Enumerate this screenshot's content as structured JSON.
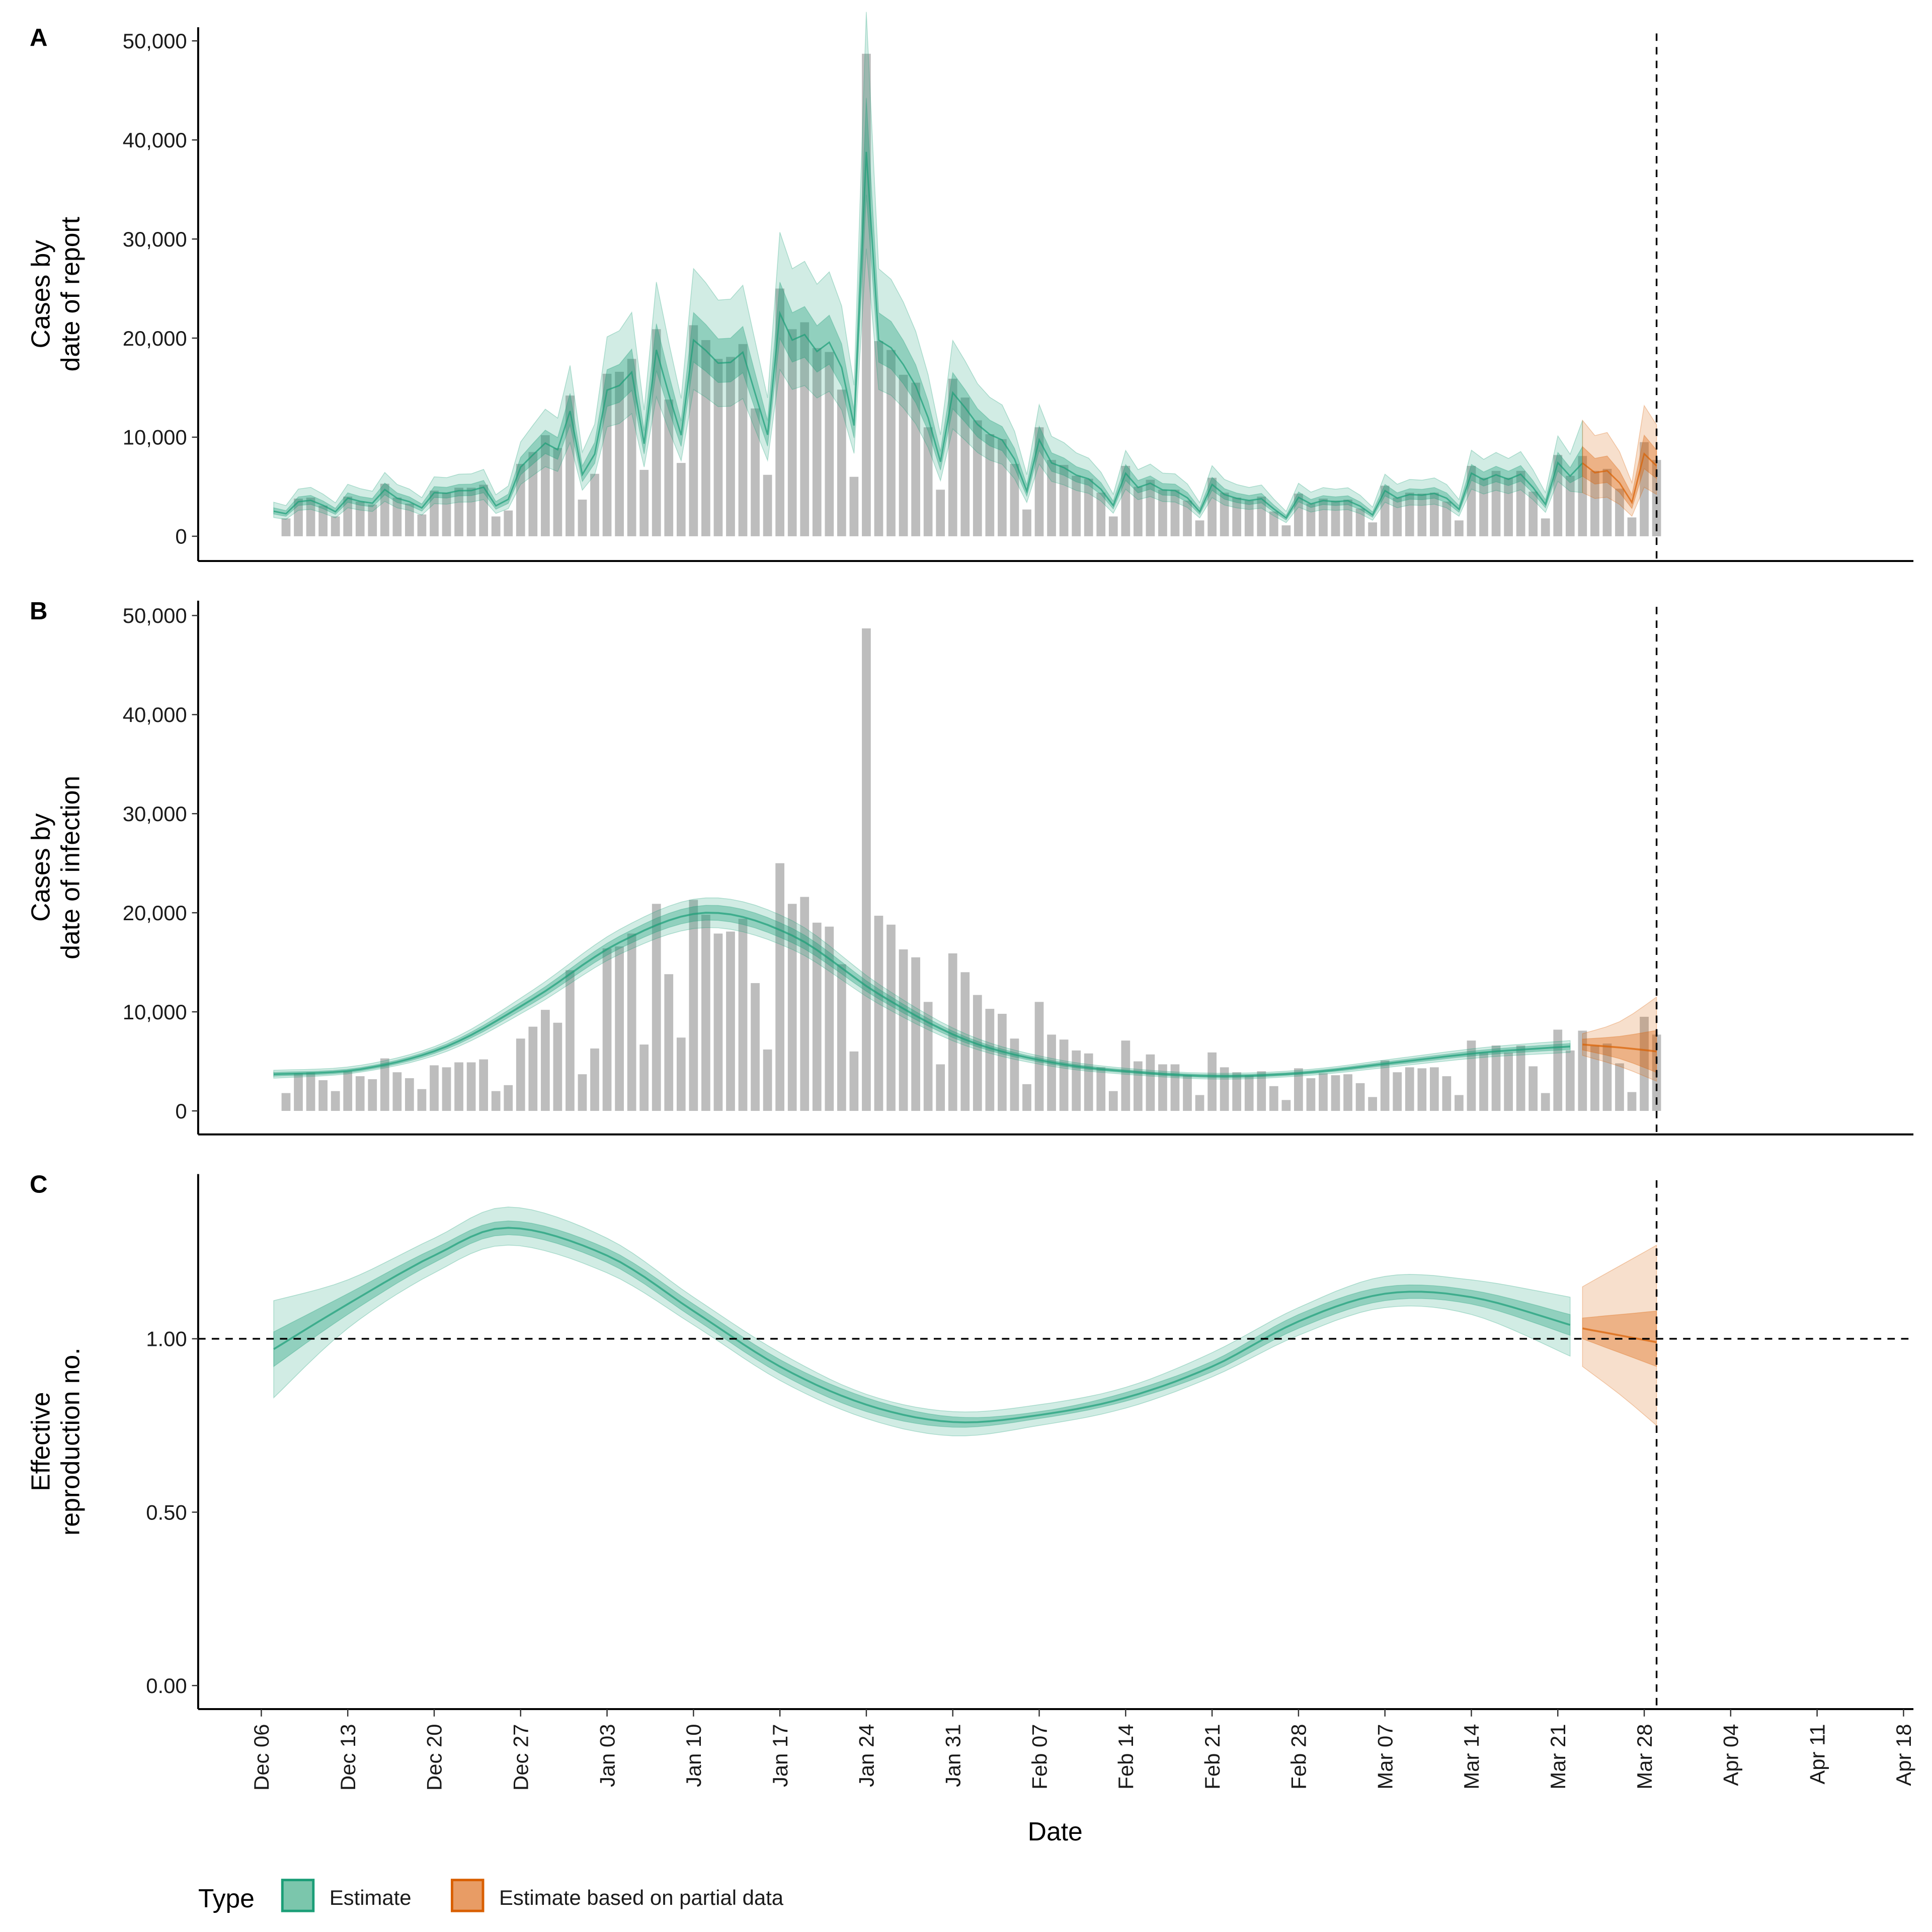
{
  "chart_data": [
    {
      "panel": "A",
      "type": "bar",
      "ylabel": [
        "Cases by",
        "date of report"
      ],
      "ylim": [
        0,
        50000
      ],
      "yticks": [
        0,
        10000,
        20000,
        30000,
        40000,
        50000
      ],
      "ytick_labels": [
        "0",
        "10,000",
        "20,000",
        "30,000",
        "40,000",
        "50,000"
      ],
      "bars": [
        [
          "Dec 08",
          1800
        ],
        [
          "Dec 09",
          3800
        ],
        [
          "Dec 10",
          3900
        ],
        [
          "Dec 11",
          3100
        ],
        [
          "Dec 12",
          2000
        ],
        [
          "Dec 13",
          4000
        ],
        [
          "Dec 14",
          3500
        ],
        [
          "Dec 15",
          3200
        ],
        [
          "Dec 16",
          5300
        ],
        [
          "Dec 17",
          3900
        ],
        [
          "Dec 18",
          3300
        ],
        [
          "Dec 19",
          2200
        ],
        [
          "Dec 20",
          4600
        ],
        [
          "Dec 21",
          4400
        ],
        [
          "Dec 22",
          4900
        ],
        [
          "Dec 23",
          4900
        ],
        [
          "Dec 24",
          5200
        ],
        [
          "Dec 25",
          2000
        ],
        [
          "Dec 26",
          2600
        ],
        [
          "Dec 27",
          7300
        ],
        [
          "Dec 28",
          8500
        ],
        [
          "Dec 29",
          10200
        ],
        [
          "Dec 30",
          8900
        ],
        [
          "Dec 31",
          14200
        ],
        [
          "Jan 01",
          3700
        ],
        [
          "Jan 02",
          6300
        ],
        [
          "Jan 03",
          16400
        ],
        [
          "Jan 04",
          16600
        ],
        [
          "Jan 05",
          17900
        ],
        [
          "Jan 06",
          6700
        ],
        [
          "Jan 07",
          20900
        ],
        [
          "Jan 08",
          13800
        ],
        [
          "Jan 09",
          7400
        ],
        [
          "Jan 10",
          21300
        ],
        [
          "Jan 11",
          19800
        ],
        [
          "Jan 12",
          17900
        ],
        [
          "Jan 13",
          18100
        ],
        [
          "Jan 14",
          19400
        ],
        [
          "Jan 15",
          12900
        ],
        [
          "Jan 16",
          6200
        ],
        [
          "Jan 17",
          25000
        ],
        [
          "Jan 18",
          20900
        ],
        [
          "Jan 19",
          21600
        ],
        [
          "Jan 20",
          19000
        ],
        [
          "Jan 21",
          18600
        ],
        [
          "Jan 22",
          14800
        ],
        [
          "Jan 23",
          6000
        ],
        [
          "Jan 24",
          48700
        ],
        [
          "Jan 25",
          19700
        ],
        [
          "Jan 26",
          18800
        ],
        [
          "Jan 27",
          16300
        ],
        [
          "Jan 28",
          15500
        ],
        [
          "Jan 29",
          11000
        ],
        [
          "Jan 30",
          4700
        ],
        [
          "Jan 31",
          15900
        ],
        [
          "Feb 01",
          14000
        ],
        [
          "Feb 02",
          11700
        ],
        [
          "Feb 03",
          10300
        ],
        [
          "Feb 04",
          9800
        ],
        [
          "Feb 05",
          7300
        ],
        [
          "Feb 06",
          2700
        ],
        [
          "Feb 07",
          11000
        ],
        [
          "Feb 08",
          7700
        ],
        [
          "Feb 09",
          7200
        ],
        [
          "Feb 10",
          6100
        ],
        [
          "Feb 11",
          5800
        ],
        [
          "Feb 12",
          4400
        ],
        [
          "Feb 13",
          2000
        ],
        [
          "Feb 14",
          7100
        ],
        [
          "Feb 15",
          5000
        ],
        [
          "Feb 16",
          5700
        ],
        [
          "Feb 17",
          4700
        ],
        [
          "Feb 18",
          4700
        ],
        [
          "Feb 19",
          3600
        ],
        [
          "Feb 20",
          1600
        ],
        [
          "Feb 21",
          5900
        ],
        [
          "Feb 22",
          4400
        ],
        [
          "Feb 23",
          3900
        ],
        [
          "Feb 24",
          3600
        ],
        [
          "Feb 25",
          4000
        ],
        [
          "Feb 26",
          2500
        ],
        [
          "Feb 27",
          1100
        ],
        [
          "Feb 28",
          4300
        ],
        [
          "Mar 01",
          3300
        ],
        [
          "Mar 02",
          3800
        ],
        [
          "Mar 03",
          3600
        ],
        [
          "Mar 04",
          3700
        ],
        [
          "Mar 05",
          2800
        ],
        [
          "Mar 06",
          1400
        ],
        [
          "Mar 07",
          5100
        ],
        [
          "Mar 08",
          3900
        ],
        [
          "Mar 09",
          4400
        ],
        [
          "Mar 10",
          4300
        ],
        [
          "Mar 11",
          4400
        ],
        [
          "Mar 12",
          3500
        ],
        [
          "Mar 13",
          1600
        ],
        [
          "Mar 14",
          7100
        ],
        [
          "Mar 15",
          5900
        ],
        [
          "Mar 16",
          6600
        ],
        [
          "Mar 17",
          5900
        ],
        [
          "Mar 18",
          6600
        ],
        [
          "Mar 19",
          4500
        ],
        [
          "Mar 20",
          1800
        ],
        [
          "Mar 21",
          8200
        ],
        [
          "Mar 22",
          6100
        ],
        [
          "Mar 23",
          8100
        ],
        [
          "Mar 24",
          6600
        ],
        [
          "Mar 25",
          6800
        ],
        [
          "Mar 26",
          4800
        ],
        [
          "Mar 27",
          1900
        ],
        [
          "Mar 28",
          9500
        ],
        [
          "Mar 29",
          7700
        ]
      ],
      "estimate_range": [
        "Dec 07",
        "Mar 22"
      ],
      "partial_range": [
        "Mar 23",
        "Mar 29"
      ]
    },
    {
      "panel": "B",
      "type": "area",
      "ylabel": [
        "Cases by",
        "date of infection"
      ],
      "ylim": [
        0,
        50000
      ],
      "yticks": [
        0,
        10000,
        20000,
        30000,
        40000,
        50000
      ],
      "ytick_labels": [
        "0",
        "10,000",
        "20,000",
        "30,000",
        "40,000",
        "50,000"
      ],
      "estimate": [
        [
          "Dec 07",
          3700,
          3300,
          4100
        ],
        [
          "Dec 14",
          4200,
          3900,
          4600
        ],
        [
          "Dec 21",
          6500,
          6000,
          7000
        ],
        [
          "Dec 28",
          11300,
          10500,
          12200
        ],
        [
          "Jan 04",
          17000,
          15800,
          18300
        ],
        [
          "Jan 11",
          20000,
          18500,
          21500
        ],
        [
          "Jan 18",
          17700,
          16300,
          19200
        ],
        [
          "Jan 25",
          11800,
          10800,
          12800
        ],
        [
          "Feb 01",
          7200,
          6600,
          7800
        ],
        [
          "Feb 08",
          4900,
          4500,
          5300
        ],
        [
          "Feb 15",
          3900,
          3600,
          4200
        ],
        [
          "Feb 22",
          3500,
          3200,
          3800
        ],
        [
          "Mar 01",
          3900,
          3600,
          4200
        ],
        [
          "Mar 08",
          4900,
          4500,
          5300
        ],
        [
          "Mar 15",
          5900,
          5400,
          6400
        ],
        [
          "Mar 22",
          6500,
          5900,
          7100
        ]
      ],
      "partial": [
        [
          "Mar 23",
          6700,
          5600,
          7800
        ],
        [
          "Mar 26",
          6400,
          4500,
          9000
        ],
        [
          "Mar 29",
          6000,
          3000,
          11500
        ]
      ],
      "columns": [
        "date",
        "median",
        "lower_90",
        "upper_90"
      ]
    },
    {
      "panel": "C",
      "type": "area",
      "ylabel": [
        "Effective",
        "reproduction no."
      ],
      "ylim": [
        0,
        1.45
      ],
      "yticks": [
        0,
        0.5,
        1.0
      ],
      "ytick_labels": [
        "0.00",
        "0.50",
        "1.00"
      ],
      "reference_line": 1.0,
      "estimate": [
        [
          "Dec 07",
          0.97,
          0.83,
          1.11,
          0.92,
          1.02
        ],
        [
          "Dec 13",
          1.1,
          1.03,
          1.17,
          1.07,
          1.13
        ],
        [
          "Dec 20",
          1.24,
          1.19,
          1.29,
          1.22,
          1.26
        ],
        [
          "Dec 26",
          1.32,
          1.27,
          1.38,
          1.3,
          1.34
        ],
        [
          "Jan 03",
          1.24,
          1.19,
          1.29,
          1.22,
          1.26
        ],
        [
          "Jan 10",
          1.08,
          1.04,
          1.12,
          1.06,
          1.1
        ],
        [
          "Jan 17",
          0.92,
          0.88,
          0.96,
          0.9,
          0.94
        ],
        [
          "Jan 24",
          0.81,
          0.77,
          0.84,
          0.79,
          0.83
        ],
        [
          "Jan 31",
          0.76,
          0.72,
          0.79,
          0.745,
          0.775
        ],
        [
          "Feb 07",
          0.78,
          0.75,
          0.81,
          0.77,
          0.79
        ],
        [
          "Feb 14",
          0.83,
          0.8,
          0.86,
          0.82,
          0.845
        ],
        [
          "Feb 21",
          0.92,
          0.89,
          0.96,
          0.905,
          0.935
        ],
        [
          "Feb 28",
          1.05,
          1.01,
          1.09,
          1.03,
          1.07
        ],
        [
          "Mar 07",
          1.13,
          1.09,
          1.18,
          1.11,
          1.15
        ],
        [
          "Mar 14",
          1.12,
          1.07,
          1.17,
          1.1,
          1.14
        ],
        [
          "Mar 22",
          1.04,
          0.95,
          1.12,
          1.01,
          1.07
        ]
      ],
      "partial": [
        [
          "Mar 23",
          1.03,
          0.92,
          1.15,
          1.0,
          1.06
        ],
        [
          "Mar 26",
          1.01,
          0.84,
          1.21,
          0.96,
          1.07
        ],
        [
          "Mar 29",
          0.99,
          0.75,
          1.27,
          0.92,
          1.08
        ]
      ],
      "columns": [
        "date",
        "median",
        "lower_90",
        "upper_90",
        "lower_50",
        "upper_50"
      ]
    }
  ],
  "panel_labels": [
    "A",
    "B",
    "C"
  ],
  "xlabel": "Date",
  "xticks": [
    "Dec 06",
    "Dec 13",
    "Dec 20",
    "Dec 27",
    "Jan 03",
    "Jan 10",
    "Jan 17",
    "Jan 24",
    "Jan 31",
    "Feb 07",
    "Feb 14",
    "Feb 21",
    "Feb 28",
    "Mar 07",
    "Mar 14",
    "Mar 21",
    "Mar 28",
    "Apr 04",
    "Apr 11",
    "Apr 18"
  ],
  "x_range": [
    "Dec 01",
    "Apr 21"
  ],
  "vertical_line_date": "Mar 29",
  "legend": {
    "title": "Type",
    "items": [
      {
        "label": "Estimate",
        "fill": "#7bc6ac",
        "stroke": "#1b9e77"
      },
      {
        "label": "Estimate based on partial data",
        "fill": "#e89c65",
        "stroke": "#d95f02"
      }
    ],
    "position": "bottom-left"
  },
  "colors": {
    "estimate": "#1b9e77",
    "partial": "#d95f02",
    "bars": "#bdbdbd"
  }
}
